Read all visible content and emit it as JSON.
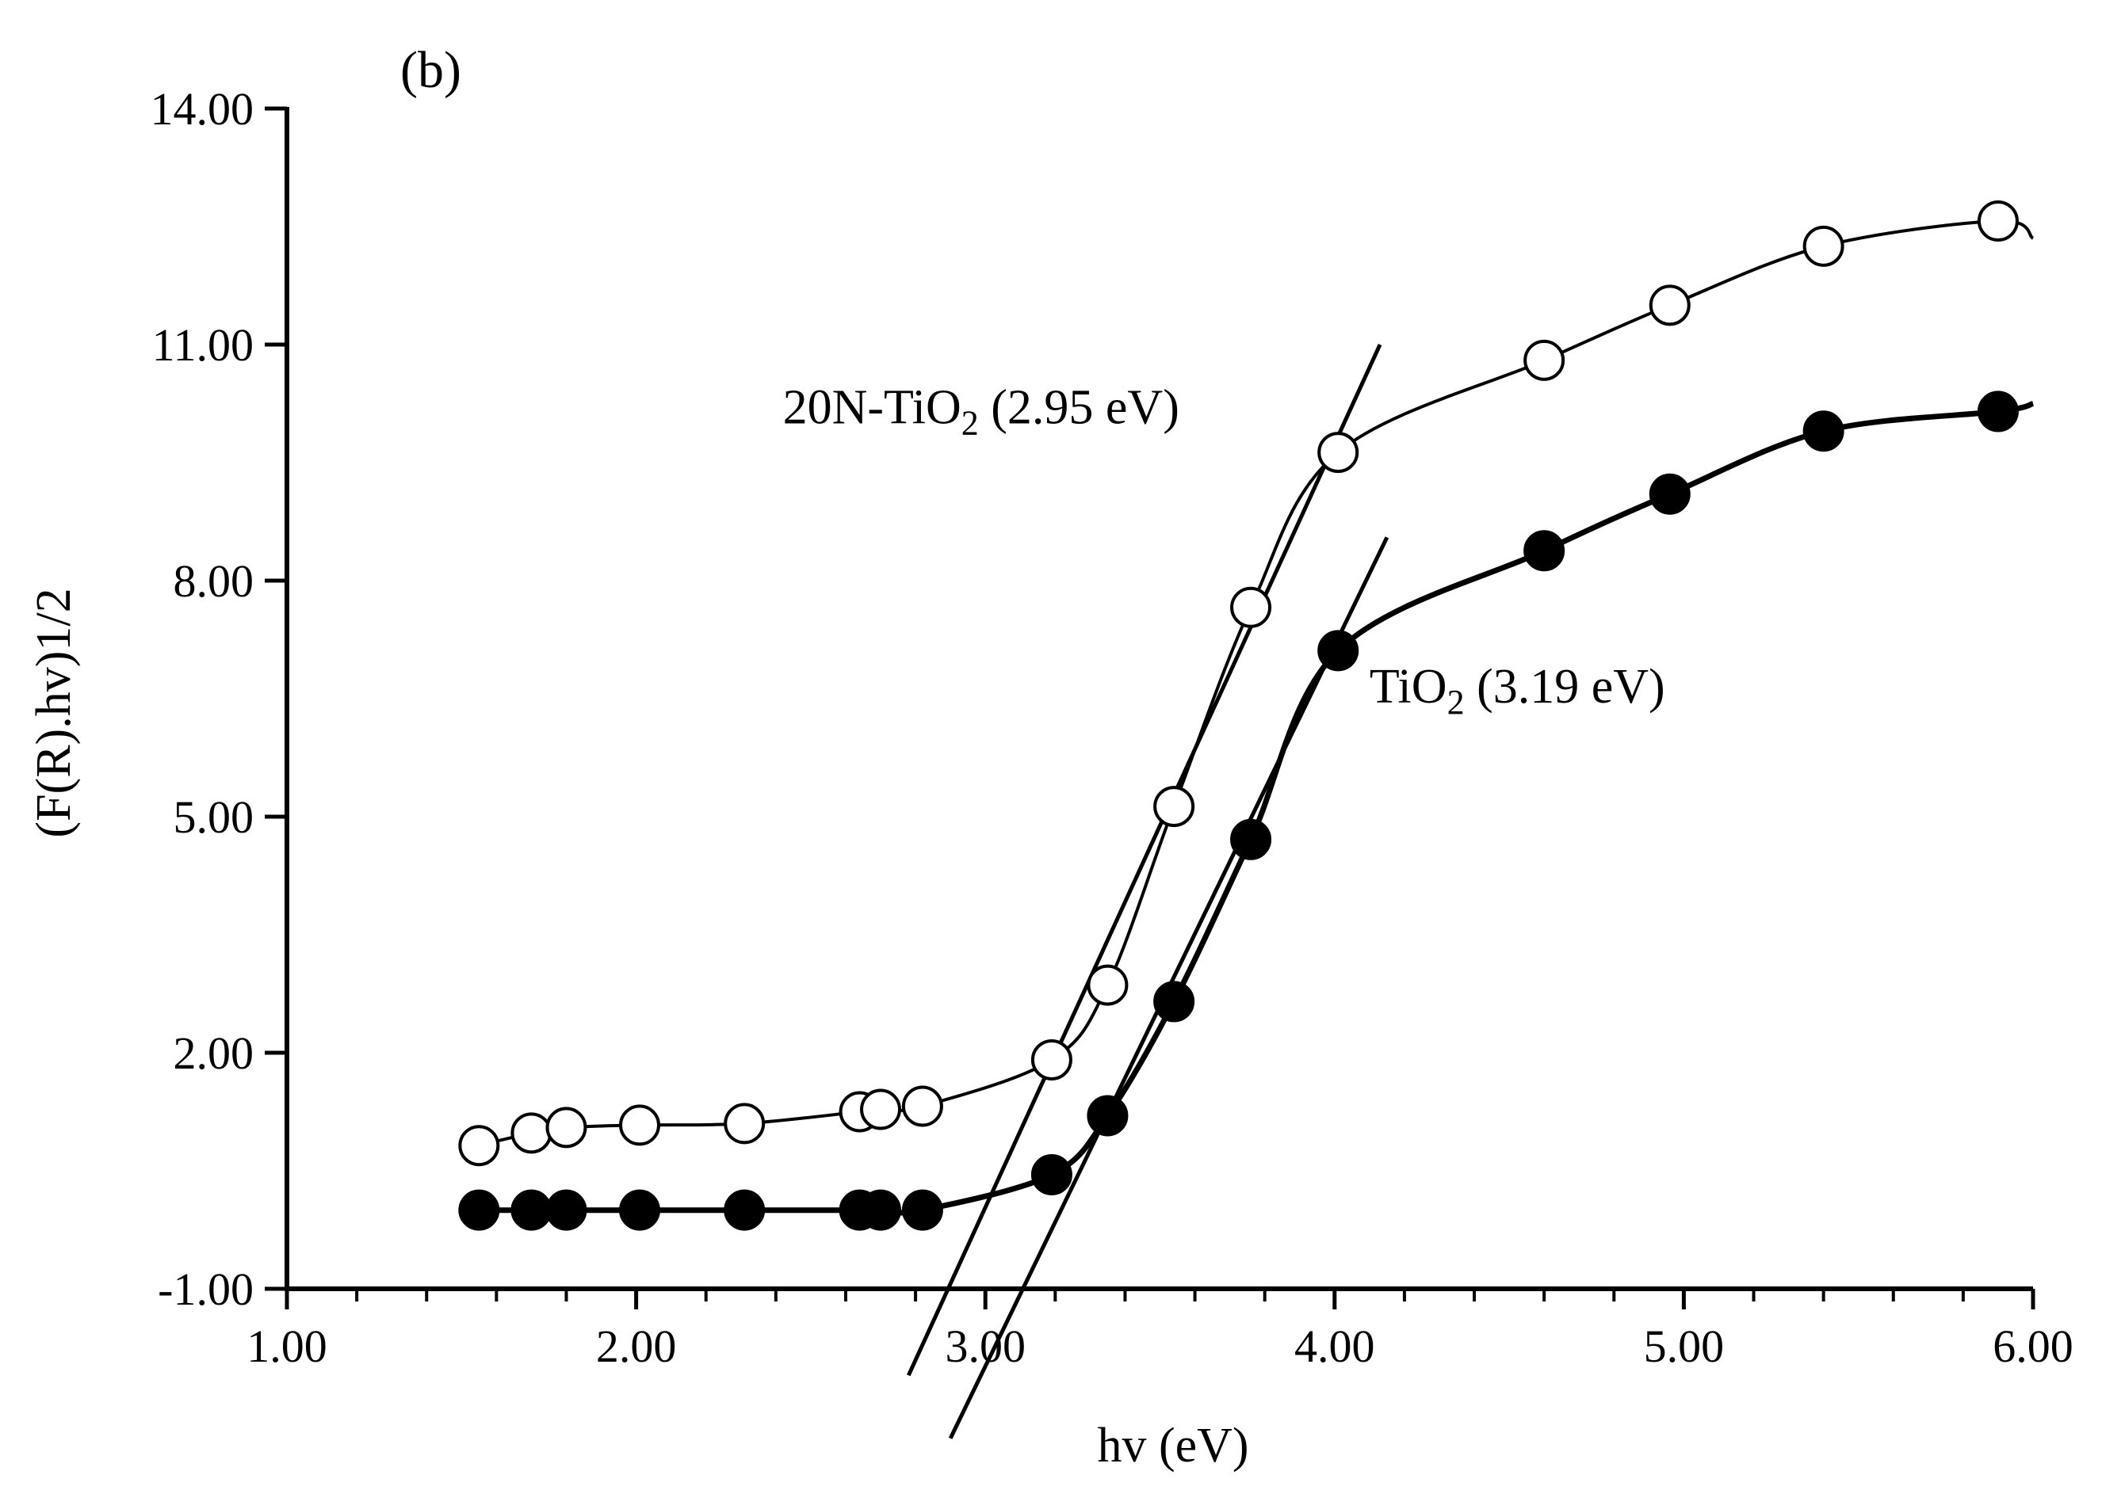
{
  "chart_data": {
    "type": "scatter",
    "panel_label": "(b)",
    "xlabel": "hv (eV)",
    "ylabel": "(F(R).hv)1/2",
    "xlim": [
      1.0,
      6.0
    ],
    "ylim": [
      -1.0,
      14.0
    ],
    "x_ticks": [
      "1.00",
      "2.00",
      "3.00",
      "4.00",
      "5.00",
      "6.00"
    ],
    "y_ticks": [
      "-1.00",
      "2.00",
      "5.00",
      "8.00",
      "11.00",
      "14.00"
    ],
    "x_tick_values": [
      1.0,
      2.0,
      3.0,
      4.0,
      5.0,
      6.0
    ],
    "y_tick_values": [
      -1.0,
      2.0,
      5.0,
      8.0,
      11.0,
      14.0
    ],
    "x_minor_step": 0.2,
    "grid": false,
    "series": [
      {
        "name": "20N-TiO2",
        "marker": "open-circle",
        "x": [
          1.55,
          1.7,
          1.8,
          2.01,
          2.31,
          2.64,
          2.7,
          2.82,
          3.19,
          3.35,
          3.54,
          3.76,
          4.01,
          4.6,
          4.96,
          5.4,
          5.9
        ],
        "y": [
          0.82,
          0.98,
          1.05,
          1.08,
          1.1,
          1.25,
          1.28,
          1.32,
          1.91,
          2.86,
          5.13,
          7.66,
          9.63,
          10.8,
          11.5,
          12.25,
          12.57
        ],
        "curve_end": [
          6.0,
          12.35
        ]
      },
      {
        "name": "TiO2",
        "marker": "filled-circle",
        "x": [
          1.55,
          1.7,
          1.8,
          2.01,
          2.31,
          2.64,
          2.7,
          2.82,
          3.19,
          3.35,
          3.54,
          3.76,
          4.01,
          4.6,
          4.96,
          5.4,
          5.9
        ],
        "y": [
          0.0,
          0.0,
          0.0,
          0.0,
          0.0,
          0.0,
          0.0,
          0.0,
          0.45,
          1.2,
          2.65,
          4.71,
          7.11,
          8.38,
          9.1,
          9.9,
          10.15
        ],
        "curve_end": [
          6.0,
          10.25
        ]
      }
    ],
    "tangent_lines": [
      {
        "name": "20N-TiO2 fit",
        "x": [
          2.78,
          4.13
        ],
        "y": [
          -2.1,
          11.0
        ]
      },
      {
        "name": "TiO2 fit",
        "x": [
          2.9,
          4.15
        ],
        "y": [
          -2.9,
          8.55
        ]
      }
    ],
    "annotations": [
      {
        "name": "label-20n-tio2",
        "parts": [
          "20N-TiO",
          "2",
          " (2.95 eV)"
        ],
        "x": 2.42,
        "y": 10.0
      },
      {
        "name": "label-tio2",
        "parts": [
          "TiO",
          "2",
          " (3.19 eV)"
        ],
        "x": 4.1,
        "y": 6.45
      }
    ]
  }
}
